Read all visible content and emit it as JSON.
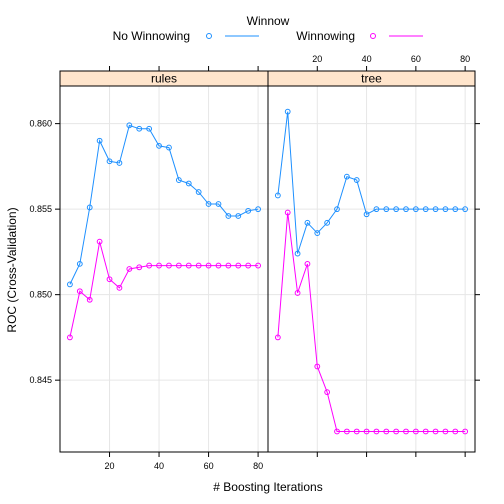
{
  "chart_data": {
    "type": "line",
    "xlabel": "# Boosting Iterations",
    "ylabel": "ROC (Cross-Validation)",
    "legend": {
      "title": "Winnow",
      "placement": "top",
      "entries": [
        "No Winnowing",
        "Winnowing"
      ]
    },
    "colors": {
      "No Winnowing": "#1e90ff",
      "Winnowing": "#ff00ff",
      "strip": "#ffe5cc"
    },
    "xlim": [
      0,
      84
    ],
    "ylim": [
      0.8408,
      0.8622
    ],
    "x_ticks": [
      20,
      40,
      60,
      80
    ],
    "y_ticks": [
      0.845,
      0.85,
      0.855,
      0.86
    ],
    "y_tick_labels": [
      "0.845",
      "0.850",
      "0.855",
      "0.860"
    ],
    "grid": true,
    "x": [
      4,
      8,
      12,
      16,
      20,
      24,
      28,
      32,
      36,
      40,
      44,
      48,
      52,
      56,
      60,
      64,
      68,
      72,
      76,
      80
    ],
    "panels": [
      {
        "strip": "rules",
        "series": [
          {
            "name": "No Winnowing",
            "values": [
              0.8506,
              0.8518,
              0.8551,
              0.859,
              0.8578,
              0.8577,
              0.8599,
              0.8597,
              0.8597,
              0.8587,
              0.8586,
              0.8567,
              0.8565,
              0.856,
              0.8553,
              0.8553,
              0.8546,
              0.8546,
              0.8549,
              0.855
            ]
          },
          {
            "name": "Winnowing",
            "values": [
              0.8475,
              0.8502,
              0.8497,
              0.8531,
              0.8509,
              0.8504,
              0.8515,
              0.8516,
              0.8517,
              0.8517,
              0.8517,
              0.8517,
              0.8517,
              0.8517,
              0.8517,
              0.8517,
              0.8517,
              0.8517,
              0.8517,
              0.8517
            ]
          }
        ]
      },
      {
        "strip": "tree",
        "series": [
          {
            "name": "No Winnowing",
            "values": [
              0.8558,
              0.8607,
              0.8524,
              0.8542,
              0.8536,
              0.8542,
              0.855,
              0.8569,
              0.8567,
              0.8547,
              0.855,
              0.855,
              0.855,
              0.855,
              0.855,
              0.855,
              0.855,
              0.855,
              0.855,
              0.855
            ]
          },
          {
            "name": "Winnowing",
            "values": [
              0.8475,
              0.8548,
              0.8501,
              0.8518,
              0.8458,
              0.8443,
              0.842,
              0.842,
              0.842,
              0.842,
              0.842,
              0.842,
              0.842,
              0.842,
              0.842,
              0.842,
              0.842,
              0.842,
              0.842,
              0.842
            ]
          }
        ]
      }
    ]
  }
}
